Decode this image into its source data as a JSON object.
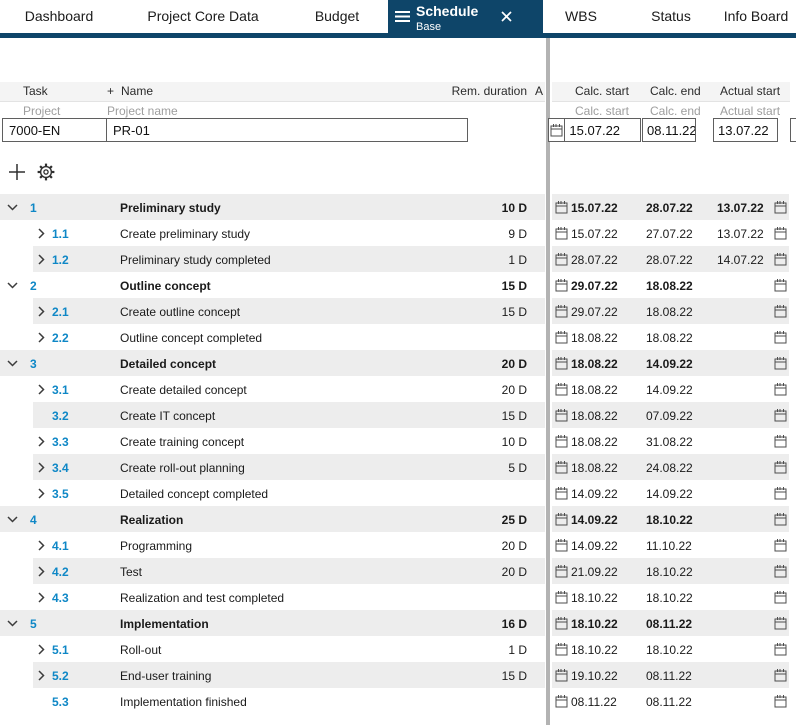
{
  "nav": {
    "tabs": [
      {
        "label": "Dashboard"
      },
      {
        "label": "Project Core Data"
      },
      {
        "label": "Budget"
      },
      {
        "label": "WBS"
      },
      {
        "label": "Status"
      },
      {
        "label": "Info Board"
      }
    ],
    "active_tab": {
      "label": "Schedule",
      "sublabel": "Base"
    }
  },
  "header": {
    "task": "Task",
    "plus": "+",
    "name": "Name",
    "rem_duration": "Rem. duration",
    "a": "A",
    "calc_start": "Calc. start",
    "calc_end": "Calc. end",
    "actual_start": "Actual start"
  },
  "subheader": {
    "project": "Project",
    "project_name": "Project name",
    "calc_start": "Calc. start",
    "calc_end": "Calc. end",
    "actual_start": "Actual start"
  },
  "project_row": {
    "id": "7000-EN",
    "name": "PR-01",
    "calc_start": "15.07.22",
    "calc_end": "08.11.22",
    "actual_start": "13.07.22"
  },
  "tasks": [
    {
      "id": "1",
      "name": "Preliminary study",
      "duration": "10 D",
      "level": 1,
      "chevron": "down",
      "calc_start": "15.07.22",
      "calc_end": "28.07.22",
      "actual_start": "13.07.22"
    },
    {
      "id": "1.1",
      "name": "Create preliminary study",
      "duration": "9 D",
      "level": 2,
      "chevron": "right",
      "calc_start": "15.07.22",
      "calc_end": "27.07.22",
      "actual_start": "13.07.22"
    },
    {
      "id": "1.2",
      "name": "Preliminary study completed",
      "duration": "1 D",
      "level": 2,
      "chevron": "right",
      "calc_start": "28.07.22",
      "calc_end": "28.07.22",
      "actual_start": "14.07.22"
    },
    {
      "id": "2",
      "name": "Outline concept",
      "duration": "15 D",
      "level": 1,
      "chevron": "down",
      "calc_start": "29.07.22",
      "calc_end": "18.08.22",
      "actual_start": ""
    },
    {
      "id": "2.1",
      "name": "Create outline concept",
      "duration": "15 D",
      "level": 2,
      "chevron": "right",
      "calc_start": "29.07.22",
      "calc_end": "18.08.22",
      "actual_start": ""
    },
    {
      "id": "2.2",
      "name": "Outline concept completed",
      "duration": "",
      "level": 2,
      "chevron": "right",
      "calc_start": "18.08.22",
      "calc_end": "18.08.22",
      "actual_start": ""
    },
    {
      "id": "3",
      "name": "Detailed concept",
      "duration": "20 D",
      "level": 1,
      "chevron": "down",
      "calc_start": "18.08.22",
      "calc_end": "14.09.22",
      "actual_start": ""
    },
    {
      "id": "3.1",
      "name": "Create detailed concept",
      "duration": "20 D",
      "level": 2,
      "chevron": "right",
      "calc_start": "18.08.22",
      "calc_end": "14.09.22",
      "actual_start": ""
    },
    {
      "id": "3.2",
      "name": "Create IT concept",
      "duration": "15 D",
      "level": 2,
      "chevron": "none",
      "calc_start": "18.08.22",
      "calc_end": "07.09.22",
      "actual_start": ""
    },
    {
      "id": "3.3",
      "name": "Create training concept",
      "duration": "10 D",
      "level": 2,
      "chevron": "right",
      "calc_start": "18.08.22",
      "calc_end": "31.08.22",
      "actual_start": ""
    },
    {
      "id": "3.4",
      "name": "Create roll-out planning",
      "duration": "5 D",
      "level": 2,
      "chevron": "right",
      "calc_start": "18.08.22",
      "calc_end": "24.08.22",
      "actual_start": ""
    },
    {
      "id": "3.5",
      "name": "Detailed concept completed",
      "duration": "",
      "level": 2,
      "chevron": "right",
      "calc_start": "14.09.22",
      "calc_end": "14.09.22",
      "actual_start": ""
    },
    {
      "id": "4",
      "name": "Realization",
      "duration": "25 D",
      "level": 1,
      "chevron": "down",
      "calc_start": "14.09.22",
      "calc_end": "18.10.22",
      "actual_start": ""
    },
    {
      "id": "4.1",
      "name": "Programming",
      "duration": "20 D",
      "level": 2,
      "chevron": "right",
      "calc_start": "14.09.22",
      "calc_end": "11.10.22",
      "actual_start": ""
    },
    {
      "id": "4.2",
      "name": "Test",
      "duration": "20 D",
      "level": 2,
      "chevron": "right",
      "calc_start": "21.09.22",
      "calc_end": "18.10.22",
      "actual_start": ""
    },
    {
      "id": "4.3",
      "name": "Realization and test completed",
      "duration": "",
      "level": 2,
      "chevron": "right",
      "calc_start": "18.10.22",
      "calc_end": "18.10.22",
      "actual_start": ""
    },
    {
      "id": "5",
      "name": "Implementation",
      "duration": "16 D",
      "level": 1,
      "chevron": "down",
      "calc_start": "18.10.22",
      "calc_end": "08.11.22",
      "actual_start": ""
    },
    {
      "id": "5.1",
      "name": "Roll-out",
      "duration": "1 D",
      "level": 2,
      "chevron": "right",
      "calc_start": "18.10.22",
      "calc_end": "18.10.22",
      "actual_start": ""
    },
    {
      "id": "5.2",
      "name": "End-user training",
      "duration": "15 D",
      "level": 2,
      "chevron": "right",
      "calc_start": "19.10.22",
      "calc_end": "08.11.22",
      "actual_start": ""
    },
    {
      "id": "5.3",
      "name": "Implementation finished",
      "duration": "",
      "level": 2,
      "chevron": "none",
      "calc_start": "08.11.22",
      "calc_end": "08.11.22",
      "actual_start": ""
    }
  ],
  "colors": {
    "navy": "#0e4569",
    "task_number_blue": "#0e87c6",
    "row_alt_gray": "#ededed",
    "header_gray": "#f4f4f4"
  }
}
